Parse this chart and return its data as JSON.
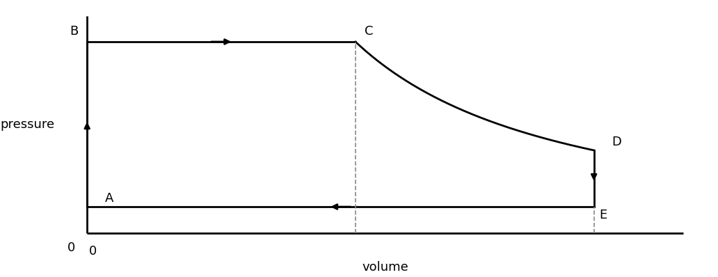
{
  "title": "",
  "xlabel": "volume",
  "ylabel": "pressure",
  "background_color": "#ffffff",
  "line_color": "#000000",
  "dashed_color": "#888888",
  "points": {
    "A": [
      0,
      0.12
    ],
    "B": [
      0,
      0.88
    ],
    "C": [
      0.45,
      0.88
    ],
    "D": [
      0.85,
      0.38
    ],
    "E": [
      0.85,
      0.12
    ]
  },
  "curve_V_start": 0.45,
  "curve_V_end": 0.85,
  "curve_P_start": 0.88,
  "curve_P_end": 0.38,
  "xlim": [
    -0.05,
    1.05
  ],
  "ylim": [
    -0.08,
    1.05
  ],
  "fontsize_labels": 13,
  "fontsize_points": 13,
  "linewidth": 2.0,
  "arrow_mutation_scale": 12
}
